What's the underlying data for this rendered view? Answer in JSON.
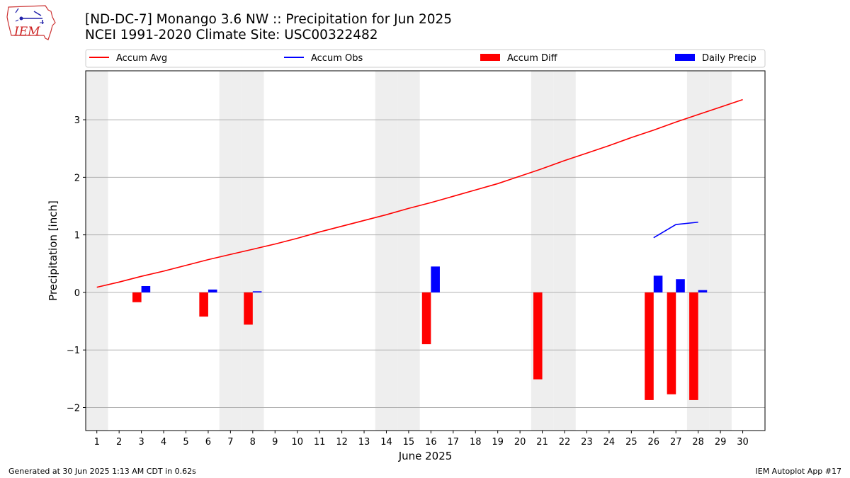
{
  "header": {
    "logo_text": "IEM",
    "title_line1": "[ND-DC-7] Monango 3.6 NW :: Precipitation for Jun 2025",
    "title_line2": "NCEI 1991-2020 Climate Site: USC00322482"
  },
  "footer": {
    "left": "Generated at 30 Jun 2025 1:13 AM CDT in 0.62s",
    "right": "IEM Autoplot App #17"
  },
  "colors": {
    "accum_avg": "#ff0000",
    "accum_obs": "#0000ff",
    "accum_diff": "#ff0000",
    "daily_precip": "#0000ff",
    "weekend_shade": "#eeeeee",
    "grid": "#b0b0b0"
  },
  "chart_data": {
    "type": "bar+line",
    "xlabel": "June 2025",
    "ylabel": "Precipitation [inch]",
    "xlim": [
      0.5,
      31.0
    ],
    "ylim": [
      -2.4,
      3.85
    ],
    "x_ticks": [
      1,
      2,
      3,
      4,
      5,
      6,
      7,
      8,
      9,
      10,
      11,
      12,
      13,
      14,
      15,
      16,
      17,
      18,
      19,
      20,
      21,
      22,
      23,
      24,
      25,
      26,
      27,
      28,
      29,
      30
    ],
    "y_ticks": [
      -2,
      -1,
      0,
      1,
      2,
      3
    ],
    "y_tick_labels": [
      "−2",
      "−1",
      "0",
      "1",
      "2",
      "3"
    ],
    "grid": "horizontal",
    "legend_position": "top",
    "weekend_days": [
      1,
      7,
      8,
      14,
      15,
      21,
      22,
      28,
      29
    ],
    "series": [
      {
        "name": "Accum Avg",
        "kind": "line",
        "x": [
          1,
          2,
          3,
          4,
          5,
          6,
          7,
          8,
          9,
          10,
          11,
          12,
          13,
          14,
          15,
          16,
          17,
          18,
          19,
          20,
          21,
          22,
          23,
          24,
          25,
          26,
          27,
          28,
          29,
          30
        ],
        "values": [
          0.09,
          0.18,
          0.28,
          0.37,
          0.47,
          0.57,
          0.66,
          0.75,
          0.84,
          0.94,
          1.05,
          1.15,
          1.25,
          1.35,
          1.46,
          1.56,
          1.67,
          1.78,
          1.89,
          2.02,
          2.15,
          2.29,
          2.42,
          2.55,
          2.69,
          2.82,
          2.96,
          3.09,
          3.22,
          3.35
        ]
      },
      {
        "name": "Accum Obs",
        "kind": "line",
        "x": [
          26,
          27,
          28
        ],
        "values": [
          0.95,
          1.18,
          1.22
        ]
      },
      {
        "name": "Accum Diff",
        "kind": "bar",
        "x": [
          3,
          6,
          8,
          16,
          21,
          26,
          27,
          28
        ],
        "values": [
          -0.17,
          -0.42,
          -0.56,
          -0.9,
          -1.51,
          -1.87,
          -1.77,
          -1.87
        ]
      },
      {
        "name": "Daily Precip",
        "kind": "bar",
        "x": [
          3,
          6,
          8,
          16,
          26,
          27,
          28
        ],
        "values": [
          0.11,
          0.05,
          0.02,
          0.45,
          0.29,
          0.23,
          0.04
        ]
      }
    ]
  }
}
